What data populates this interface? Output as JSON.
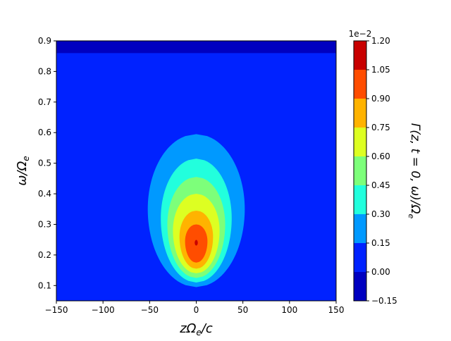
{
  "chart_data": {
    "type": "contourf",
    "xlabel_main": "zΩ",
    "xlabel_sub": "e",
    "xlabel_tail": "/c",
    "ylabel_main": "ω/Ω",
    "ylabel_sub": "e",
    "colorbar_label": "Γ(z, t = 0, ω)/Ω",
    "colorbar_label_sub": "e",
    "colorbar_exponent": "1e−2",
    "xlim": [
      -150,
      150
    ],
    "ylim": [
      0.05,
      0.9
    ],
    "x_ticks": [
      -150,
      -100,
      -50,
      0,
      50,
      100,
      150
    ],
    "x_tick_labels": [
      "−150",
      "−100",
      "−50",
      "0",
      "50",
      "100",
      "150"
    ],
    "y_ticks": [
      0.1,
      0.2,
      0.3,
      0.4,
      0.5,
      0.6,
      0.7,
      0.8,
      0.9
    ],
    "y_tick_labels": [
      "0.1",
      "0.2",
      "0.3",
      "0.4",
      "0.5",
      "0.6",
      "0.7",
      "0.8",
      "0.9"
    ],
    "colorbar_levels": [
      -0.15,
      0.0,
      0.15,
      0.3,
      0.45,
      0.6,
      0.75,
      0.9,
      1.05,
      1.2
    ],
    "colorbar_tick_labels": [
      "−0.15",
      "0.00",
      "0.15",
      "0.30",
      "0.45",
      "0.60",
      "0.75",
      "0.90",
      "1.05",
      "1.20"
    ],
    "colormap": "jet",
    "level_colors": [
      "#0000c0",
      "#0022ff",
      "#0099ff",
      "#22ffdd",
      "#7dff7a",
      "#ddff22",
      "#ffb300",
      "#ff4d00",
      "#c80000"
    ],
    "background_band": {
      "level_index": 0,
      "y_from": 0.86,
      "y_to": 0.9
    },
    "peak": {
      "x": 0,
      "y": 0.24,
      "value": 1.2
    },
    "contour_bands": [
      {
        "level_index": 2,
        "x_center": 0,
        "y_min": 0.095,
        "y_max": 0.595,
        "half_width": 52,
        "y_widest": 0.35
      },
      {
        "level_index": 3,
        "x_center": 0,
        "y_min": 0.11,
        "y_max": 0.515,
        "half_width": 38,
        "y_widest": 0.32
      },
      {
        "level_index": 4,
        "x_center": 0,
        "y_min": 0.125,
        "y_max": 0.455,
        "half_width": 31,
        "y_widest": 0.3
      },
      {
        "level_index": 5,
        "x_center": 0,
        "y_min": 0.14,
        "y_max": 0.4,
        "half_width": 25,
        "y_widest": 0.28
      },
      {
        "level_index": 6,
        "x_center": 0,
        "y_min": 0.155,
        "y_max": 0.345,
        "half_width": 18,
        "y_widest": 0.26
      },
      {
        "level_index": 7,
        "x_center": 0,
        "y_min": 0.175,
        "y_max": 0.3,
        "half_width": 12,
        "y_widest": 0.245
      }
    ]
  }
}
